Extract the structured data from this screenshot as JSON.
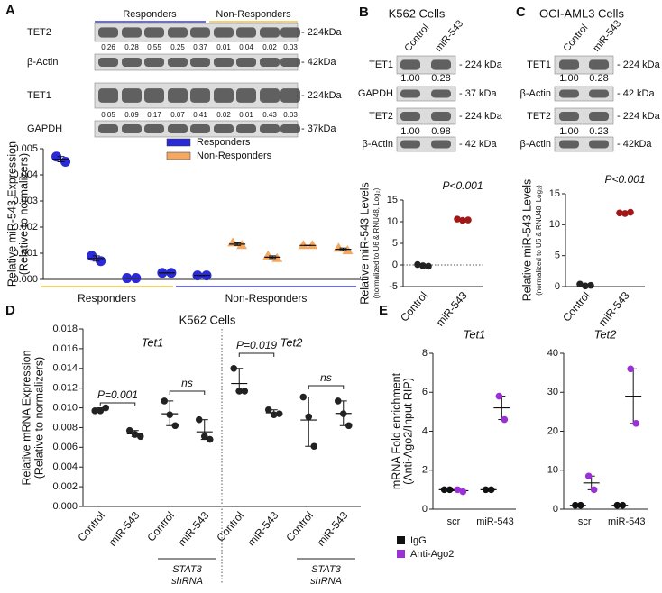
{
  "panel_labels": [
    "A",
    "B",
    "C",
    "D",
    "E"
  ],
  "blots": [
    {
      "groups": [
        "Responders",
        "Non-Responders"
      ],
      "rows": [
        {
          "label": "TET2",
          "size": "- 224kDa",
          "values": [
            "0.26",
            "0.28",
            "0.55",
            "0.25",
            "0.37",
            "0.01",
            "0.04",
            "0.02",
            "0.03"
          ]
        },
        {
          "label": "β-Actin",
          "size": "- 42kDa"
        },
        {
          "label": "TET1",
          "size": "- 224kDa",
          "values": [
            "0.05",
            "0.09",
            "0.17",
            "0.07",
            "0.41",
            "0.02",
            "0.01",
            "0.43",
            "0.03"
          ]
        },
        {
          "label": "GAPDH",
          "size": "- 37kDa"
        }
      ]
    },
    {
      "title": "K562 Cells",
      "lanes": [
        "Control",
        "miR-543"
      ],
      "rows": [
        {
          "label": "TET1",
          "size": "- 224 kDa",
          "values": [
            "1.00",
            "0.28"
          ]
        },
        {
          "label": "GAPDH",
          "size": "- 37 kDa"
        },
        {
          "label": "TET2",
          "size": "- 224 kDa",
          "values": [
            "1.00",
            "0.98"
          ]
        },
        {
          "label": "β-Actin",
          "size": "- 42 kDa"
        }
      ]
    },
    {
      "title": "OCI-AML3 Cells",
      "lanes": [
        "Control",
        "miR-543"
      ],
      "rows": [
        {
          "label": "TET1",
          "size": "- 224 kDa",
          "values": [
            "1.00",
            "0.28"
          ]
        },
        {
          "label": "β-Actin",
          "size": "- 42 kDa"
        },
        {
          "label": "TET2",
          "size": "- 224 kDa",
          "values": [
            "1.00",
            "0.23"
          ]
        },
        {
          "label": "β-Actin",
          "size": "- 42kDa"
        }
      ]
    }
  ],
  "chart_data": [
    {
      "type": "scatter",
      "ylabel": [
        "Relative miR-543 Expression",
        "(Relative to normalizers)"
      ],
      "xlim": [
        0.5,
        9.5
      ],
      "ylim": [
        0,
        0.005
      ],
      "yticks": [
        {
          "value": 0,
          "label": "0.000"
        },
        {
          "value": 0.001,
          "label": "0.001"
        },
        {
          "value": 0.002,
          "label": "0.002"
        },
        {
          "value": 0.003,
          "label": "0.003"
        },
        {
          "value": 0.004,
          "label": "0.004"
        },
        {
          "value": 0.005,
          "label": "0.005"
        }
      ],
      "series": [
        {
          "name": "Responders",
          "color": "#2a2ad6",
          "marker": "circle",
          "x": [
            1,
            1,
            2,
            2,
            3,
            3,
            4,
            4,
            5,
            5
          ],
          "values": [
            0.0047,
            0.0045,
            0.0009,
            0.0007,
            5e-05,
            5e-05,
            0.00025,
            0.00025,
            0.00015,
            0.00015
          ]
        },
        {
          "name": "Non-Responders",
          "color": "#f5a862",
          "marker": "triangle",
          "x": [
            6,
            6,
            7,
            7,
            8,
            8,
            9,
            9
          ],
          "values": [
            0.0014,
            0.0013,
            0.0009,
            0.0008,
            0.0013,
            0.0013,
            0.0012,
            0.0011
          ]
        }
      ],
      "groups": [
        {
          "label": "Responders",
          "color": "#f0c040"
        },
        {
          "label": "Non-Responders",
          "color": "#3a3ad8"
        }
      ]
    },
    {
      "type": "dot",
      "ylabel": [
        "Relative miR-543 Levels",
        "(normalized to U6 & RNU48, Log₂)"
      ],
      "ylim": [
        -5,
        15
      ],
      "yticks": [
        -5,
        0,
        5,
        10,
        15
      ],
      "zero_line": true,
      "categories": [
        "Control",
        "miR-543"
      ],
      "colors": [
        "#222222",
        "#a01818"
      ],
      "series": [
        {
          "values": [
            [
              0.1,
              -0.2,
              -0.3
            ],
            [
              10.6,
              10.3,
              10.4
            ]
          ]
        }
      ],
      "annotations": [
        "P<0.001"
      ]
    },
    {
      "type": "dot",
      "ylabel": [
        "Relative miR-543 Levels",
        "(normalized to U6 & RNU48, Log₂)"
      ],
      "ylim": [
        0,
        15
      ],
      "yticks": [
        0,
        5,
        10,
        15
      ],
      "categories": [
        "Control",
        "miR-543"
      ],
      "colors": [
        "#222222",
        "#a01818"
      ],
      "series": [
        {
          "values": [
            [
              0.4,
              0.1,
              0.2
            ],
            [
              11.9,
              11.8,
              12.0
            ]
          ]
        }
      ],
      "annotations": [
        "P<0.001"
      ]
    },
    {
      "type": "dot",
      "title": "K562 Cells",
      "ylabel": [
        "Relative mRNA Expression",
        "(Relative to normalizers)"
      ],
      "ylim": [
        0,
        0.018
      ],
      "yticks": [
        {
          "value": 0,
          "label": "0.000"
        },
        {
          "value": 0.002,
          "label": "0.002"
        },
        {
          "value": 0.004,
          "label": "0.004"
        },
        {
          "value": 0.006,
          "label": "0.006"
        },
        {
          "value": 0.008,
          "label": "0.008"
        },
        {
          "value": 0.01,
          "label": "0.010"
        },
        {
          "value": 0.012,
          "label": "0.012"
        },
        {
          "value": 0.014,
          "label": "0.014"
        },
        {
          "value": 0.016,
          "label": "0.016"
        },
        {
          "value": 0.018,
          "label": "0.018"
        }
      ],
      "categories": [
        "Control",
        "miR-543",
        "Control",
        "miR-543",
        "Control",
        "miR-543",
        "Control",
        "miR-543"
      ],
      "colors": [
        "#222222",
        "#222222",
        "#222222",
        "#222222",
        "#222222",
        "#222222",
        "#222222",
        "#222222"
      ],
      "series": [
        {
          "values": [
            [
              0.0097,
              0.0097,
              0.01
            ],
            [
              0.0077,
              0.0073,
              0.0071
            ],
            [
              0.0107,
              0.0093,
              0.0082
            ],
            [
              0.0088,
              0.0071,
              0.0068
            ],
            [
              0.014,
              0.0117,
              0.0117
            ],
            [
              0.0098,
              0.0093,
              0.0094
            ],
            [
              0.0111,
              0.0091,
              0.0061
            ],
            [
              0.0107,
              0.0094,
              0.0082
            ]
          ]
        }
      ],
      "groups": [
        "Tet1",
        "Tet2"
      ],
      "subgroup_label": [
        "STAT3",
        "shRNA"
      ],
      "annotations": [
        "P=0.001",
        "ns",
        "P=0.019",
        "ns"
      ]
    },
    {
      "type": "dot",
      "title": "Tet1",
      "ylabel": [
        "mRNA Fold enrichment",
        "(Anti-Ago2/Input RIP)"
      ],
      "ylim": [
        0,
        8
      ],
      "yticks": [
        0,
        2,
        4,
        6,
        8
      ],
      "categories": [
        "scr",
        "miR-543"
      ],
      "series": [
        {
          "name": "IgG",
          "color": "#111111",
          "values": [
            [
              1,
              1
            ],
            [
              1,
              1
            ]
          ]
        },
        {
          "name": "Anti-Ago2",
          "color": "#9b30d9",
          "values": [
            [
              1,
              0.9
            ],
            [
              5.8,
              4.6
            ]
          ]
        }
      ]
    },
    {
      "type": "dot",
      "title": "Tet2",
      "ylim": [
        0,
        40
      ],
      "yticks": [
        0,
        10,
        20,
        30,
        40
      ],
      "categories": [
        "scr",
        "miR-543"
      ],
      "series": [
        {
          "color": "#111111",
          "values": [
            [
              1,
              1
            ],
            [
              1,
              1
            ]
          ]
        },
        {
          "color": "#9b30d9",
          "values": [
            [
              8.5,
              5
            ],
            [
              36,
              22
            ]
          ]
        }
      ]
    }
  ]
}
